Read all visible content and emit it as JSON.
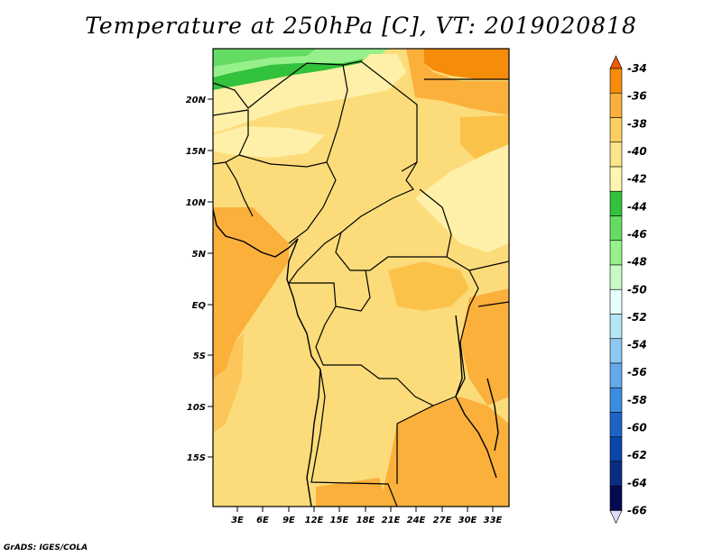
{
  "title": "Temperature at 250hPa [C], VT: 2019020818",
  "credit": "GrADS: IGES/COLA",
  "lat_labels": [
    "20N",
    "15N",
    "10N",
    "5N",
    "EQ",
    "5S",
    "10S",
    "15S"
  ],
  "lon_labels": [
    "3E",
    "6E",
    "9E",
    "12E",
    "15E",
    "18E",
    "21E",
    "24E",
    "27E",
    "30E",
    "33E"
  ],
  "colorbar": {
    "labels": [
      "-34",
      "-36",
      "-38",
      "-40",
      "-42",
      "-44",
      "-46",
      "-48",
      "-50",
      "-52",
      "-54",
      "-56",
      "-58",
      "-60",
      "-62",
      "-64",
      "-66"
    ],
    "colors": [
      "#f05a0a",
      "#f58c0a",
      "#fbb03c",
      "#fcd060",
      "#fde589",
      "#fef5b0",
      "#32c23c",
      "#64dc64",
      "#96f08c",
      "#c8fac8",
      "#e6ffff",
      "#b4e6f5",
      "#8cc8f0",
      "#64aaeb",
      "#3c8ce1",
      "#1e64c8",
      "#0a46aa",
      "#082d82",
      "#050a50",
      "#dcdcf5"
    ]
  }
}
